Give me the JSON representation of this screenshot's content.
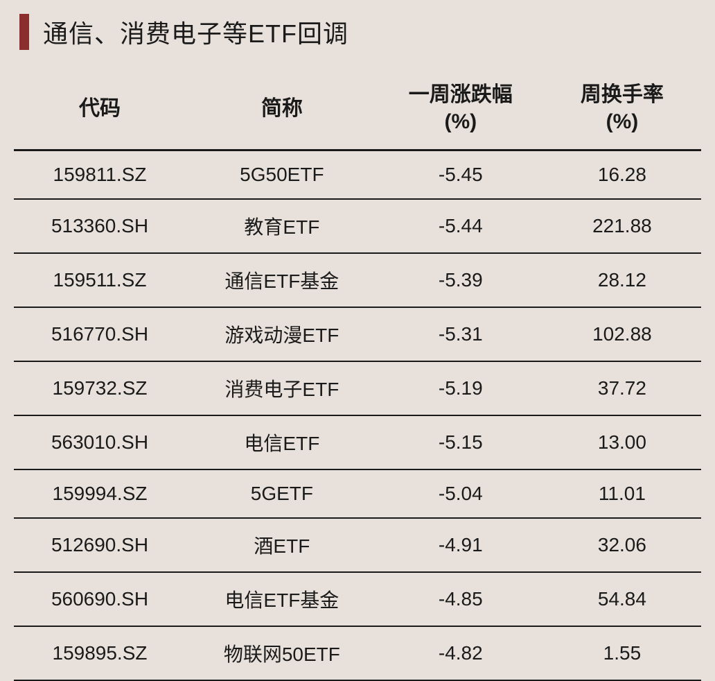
{
  "title": "通信、消费电子等ETF回调",
  "styling": {
    "background_color": "#e8e1db",
    "title_bar_color": "#8b2e2e",
    "title_fontsize": 36,
    "header_fontsize": 30,
    "cell_fontsize": 28,
    "border_color": "#1a1a1a",
    "text_color": "#1a1a1a",
    "header_border_width": 3,
    "row_border_width": 2
  },
  "table": {
    "type": "table",
    "columns": [
      {
        "label": "代码",
        "width": "25%"
      },
      {
        "label": "简称",
        "width": "28%"
      },
      {
        "label": "一周涨跌幅(%)",
        "width": "24%"
      },
      {
        "label": "周换手率(%)",
        "width": "23%"
      }
    ],
    "rows": [
      {
        "code": "159811.SZ",
        "name": "5G50ETF",
        "change": "-5.45",
        "turnover": "16.28"
      },
      {
        "code": "513360.SH",
        "name": "教育ETF",
        "change": "-5.44",
        "turnover": "221.88"
      },
      {
        "code": "159511.SZ",
        "name": "通信ETF基金",
        "change": "-5.39",
        "turnover": "28.12"
      },
      {
        "code": "516770.SH",
        "name": "游戏动漫ETF",
        "change": "-5.31",
        "turnover": "102.88"
      },
      {
        "code": "159732.SZ",
        "name": "消费电子ETF",
        "change": "-5.19",
        "turnover": "37.72"
      },
      {
        "code": "563010.SH",
        "name": "电信ETF",
        "change": "-5.15",
        "turnover": "13.00"
      },
      {
        "code": "159994.SZ",
        "name": "5GETF",
        "change": "-5.04",
        "turnover": "11.01"
      },
      {
        "code": "512690.SH",
        "name": "酒ETF",
        "change": "-4.91",
        "turnover": "32.06"
      },
      {
        "code": "560690.SH",
        "name": "电信ETF基金",
        "change": "-4.85",
        "turnover": "54.84"
      },
      {
        "code": "159895.SZ",
        "name": "物联网50ETF",
        "change": "-4.82",
        "turnover": "1.55"
      }
    ]
  }
}
